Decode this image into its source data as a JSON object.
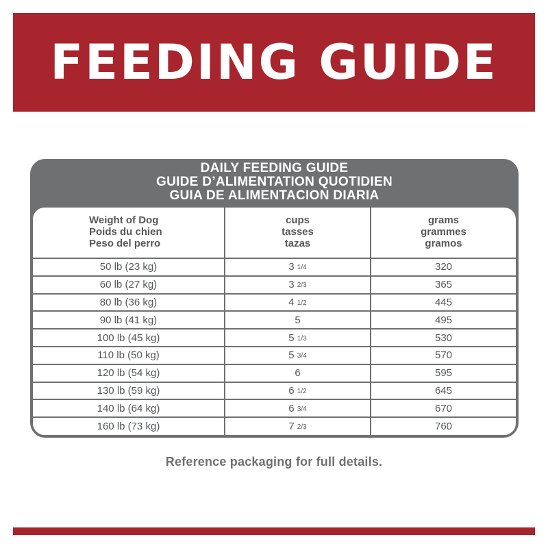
{
  "banner": {
    "title": "FEEDING GUIDE"
  },
  "guide": {
    "title_lines": [
      "DAILY FEEDING GUIDE",
      "GUIDE D’ALIMENTATION QUOTIDIEN",
      "GUIA DE ALIMENTACION DIARIA"
    ],
    "columns": [
      [
        "Weight of Dog",
        "Poids du chien",
        "Peso del perro"
      ],
      [
        "cups",
        "tasses",
        "tazas"
      ],
      [
        "grams",
        "grammes",
        "gramos"
      ]
    ],
    "rows": [
      {
        "weight": "50 lb (23 kg)",
        "cups_whole": "3",
        "cups_frac": "1/4",
        "grams": "320"
      },
      {
        "weight": "60 lb (27 kg)",
        "cups_whole": "3",
        "cups_frac": "2/3",
        "grams": "365"
      },
      {
        "weight": "80 lb (36 kg)",
        "cups_whole": "4",
        "cups_frac": "1/2",
        "grams": "445"
      },
      {
        "weight": "90 lb (41 kg)",
        "cups_whole": "5",
        "cups_frac": "",
        "grams": "495"
      },
      {
        "weight": "100 lb (45 kg)",
        "cups_whole": "5",
        "cups_frac": "1/3",
        "grams": "530"
      },
      {
        "weight": "110 lb (50 kg)",
        "cups_whole": "5",
        "cups_frac": "3/4",
        "grams": "570"
      },
      {
        "weight": "120 lb (54 kg)",
        "cups_whole": "6",
        "cups_frac": "",
        "grams": "595"
      },
      {
        "weight": "130 lb (59 kg)",
        "cups_whole": "6",
        "cups_frac": "1/2",
        "grams": "645"
      },
      {
        "weight": "140 lb (64 kg)",
        "cups_whole": "6",
        "cups_frac": "3/4",
        "grams": "670"
      },
      {
        "weight": "160 lb (73 kg)",
        "cups_whole": "7",
        "cups_frac": "2/3",
        "grams": "760"
      }
    ]
  },
  "footnote": "Reference packaging for full details.",
  "colors": {
    "brand_red": "#a8252d",
    "gray": "#6e7072",
    "text_gray": "#555759"
  }
}
